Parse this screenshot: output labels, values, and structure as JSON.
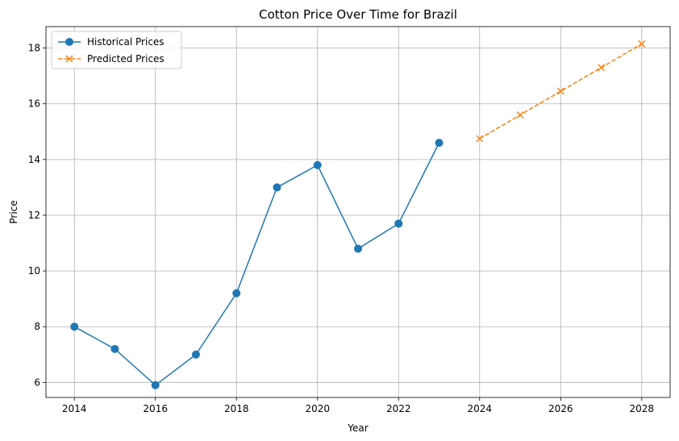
{
  "chart_data": {
    "type": "line",
    "title": "Cotton Price Over Time for Brazil",
    "xlabel": "Year",
    "ylabel": "Price",
    "xlim": [
      2013.3,
      2028.7
    ],
    "ylim": [
      5.46,
      18.77
    ],
    "xticks": [
      2014,
      2016,
      2018,
      2020,
      2022,
      2024,
      2026,
      2028
    ],
    "yticks": [
      6,
      8,
      10,
      12,
      14,
      16,
      18
    ],
    "grid": true,
    "legend_position": "top-left",
    "series": [
      {
        "name": "Historical Prices",
        "color": "#1f77b4",
        "marker": "circle",
        "linestyle": "solid",
        "x": [
          2014,
          2015,
          2016,
          2017,
          2018,
          2019,
          2020,
          2021,
          2022,
          2023
        ],
        "y": [
          8.0,
          7.2,
          5.9,
          7.0,
          9.2,
          13.0,
          13.8,
          10.8,
          11.7,
          14.6
        ]
      },
      {
        "name": "Predicted Prices",
        "color": "#ff7f0e",
        "marker": "x",
        "linestyle": "dashed",
        "x": [
          2024,
          2025,
          2026,
          2027,
          2028
        ],
        "y": [
          14.75,
          15.6,
          16.45,
          17.3,
          18.15
        ]
      }
    ]
  }
}
